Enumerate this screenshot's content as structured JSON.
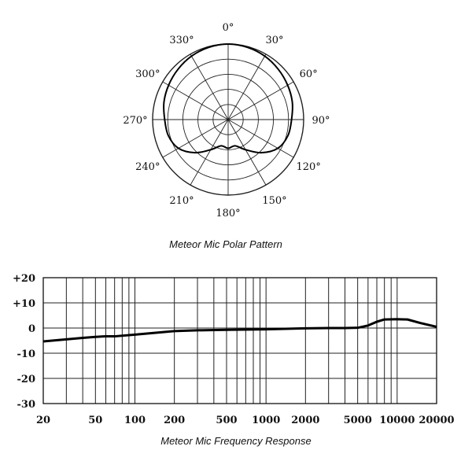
{
  "chart_data": [
    {
      "type": "polar",
      "title": "Meteor Mic Polar Pattern",
      "angle_labels": [
        "0°",
        "30°",
        "60°",
        "90°",
        "120°",
        "150°",
        "180°",
        "210°",
        "240°",
        "270°",
        "300°",
        "330°"
      ],
      "rings": 5,
      "grid": true,
      "pattern": [
        {
          "angle": 0,
          "r": 1.0
        },
        {
          "angle": 15,
          "r": 0.99
        },
        {
          "angle": 30,
          "r": 0.97
        },
        {
          "angle": 45,
          "r": 0.94
        },
        {
          "angle": 60,
          "r": 0.91
        },
        {
          "angle": 75,
          "r": 0.88
        },
        {
          "angle": 90,
          "r": 0.84
        },
        {
          "angle": 105,
          "r": 0.82
        },
        {
          "angle": 120,
          "r": 0.76
        },
        {
          "angle": 135,
          "r": 0.62
        },
        {
          "angle": 150,
          "r": 0.46
        },
        {
          "angle": 165,
          "r": 0.36
        },
        {
          "angle": 180,
          "r": 0.38
        },
        {
          "angle": 195,
          "r": 0.36
        },
        {
          "angle": 210,
          "r": 0.46
        },
        {
          "angle": 225,
          "r": 0.62
        },
        {
          "angle": 240,
          "r": 0.76
        },
        {
          "angle": 255,
          "r": 0.82
        },
        {
          "angle": 270,
          "r": 0.84
        },
        {
          "angle": 285,
          "r": 0.88
        },
        {
          "angle": 300,
          "r": 0.91
        },
        {
          "angle": 315,
          "r": 0.94
        },
        {
          "angle": 330,
          "r": 0.97
        },
        {
          "angle": 345,
          "r": 0.99
        }
      ]
    },
    {
      "type": "line",
      "title": "Meteor Mic Frequency Response",
      "xscale": "log",
      "xlim": [
        20,
        20000
      ],
      "ylim": [
        -30,
        20
      ],
      "grid": true,
      "xticks": [
        {
          "value": 20,
          "label": "20"
        },
        {
          "value": 50,
          "label": "50"
        },
        {
          "value": 100,
          "label": "100"
        },
        {
          "value": 200,
          "label": "200"
        },
        {
          "value": 500,
          "label": "500"
        },
        {
          "value": 1000,
          "label": "1000"
        },
        {
          "value": 2000,
          "label": "2000"
        },
        {
          "value": 5000,
          "label": "5000"
        },
        {
          "value": 10000,
          "label": "10000"
        },
        {
          "value": 20000,
          "label": "20000"
        }
      ],
      "yticks": [
        {
          "value": 20,
          "label": "+20"
        },
        {
          "value": 10,
          "label": "+10"
        },
        {
          "value": 0,
          "label": "0"
        },
        {
          "value": -10,
          "label": "-10"
        },
        {
          "value": -20,
          "label": "-20"
        },
        {
          "value": -30,
          "label": "-30"
        }
      ],
      "series": [
        {
          "x": [
            20,
            30,
            40,
            50,
            60,
            70,
            100,
            150,
            200,
            300,
            500,
            1000,
            2000,
            3000,
            4000,
            5000,
            6000,
            7000,
            8000,
            10000,
            12000,
            15000,
            20000
          ],
          "y": [
            -5.3,
            -4.5,
            -3.9,
            -3.5,
            -3.3,
            -3.3,
            -2.6,
            -1.8,
            -1.2,
            -0.9,
            -0.7,
            -0.5,
            -0.1,
            0.0,
            0.0,
            0.1,
            1.0,
            2.5,
            3.4,
            3.5,
            3.4,
            2.0,
            0.5
          ]
        }
      ]
    }
  ]
}
